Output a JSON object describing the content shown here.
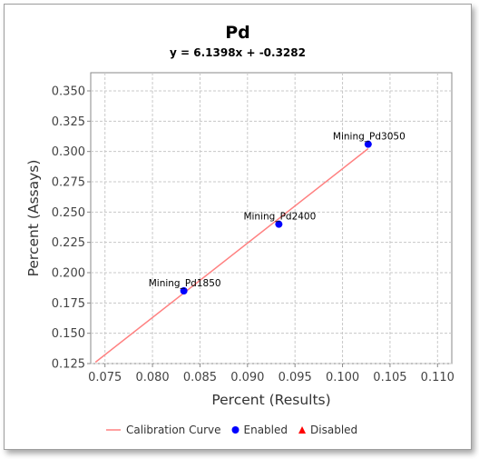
{
  "chart_data": {
    "type": "scatter",
    "title": "Pd",
    "subtitle": "y = 6.1398x + -0.3282",
    "xlabel": "Percent (Results)",
    "ylabel": "Percent (Assays)",
    "xlim": [
      0.0735,
      0.1115
    ],
    "ylim": [
      0.125,
      0.365
    ],
    "x_ticks": [
      "0.075",
      "0.080",
      "0.085",
      "0.090",
      "0.095",
      "0.100",
      "0.105",
      "0.110"
    ],
    "y_ticks": [
      "0.125",
      "0.150",
      "0.175",
      "0.200",
      "0.225",
      "0.250",
      "0.275",
      "0.300",
      "0.325",
      "0.350"
    ],
    "grid": true,
    "series": [
      {
        "name": "Enabled",
        "color": "#0000ff",
        "points": [
          {
            "label": "Mining_Pd1850",
            "x": 0.0833,
            "y": 0.185
          },
          {
            "label": "Mining_Pd2400",
            "x": 0.0933,
            "y": 0.24
          },
          {
            "label": "Mining_Pd3050",
            "x": 0.1027,
            "y": 0.306
          }
        ]
      }
    ],
    "line": {
      "name": "Calibration Curve",
      "color": "#ff8080",
      "slope": 6.1398,
      "intercept": -0.3282,
      "x_range": [
        0.074,
        0.1027
      ]
    },
    "legend": {
      "placement": "bottom",
      "items": [
        {
          "label": "Calibration Curve",
          "color": "#ff8080",
          "symbol": "line"
        },
        {
          "label": "Enabled",
          "color": "#0000ff",
          "symbol": "circle"
        },
        {
          "label": "Disabled",
          "color": "#ff0000",
          "symbol": "triangle"
        }
      ]
    }
  }
}
